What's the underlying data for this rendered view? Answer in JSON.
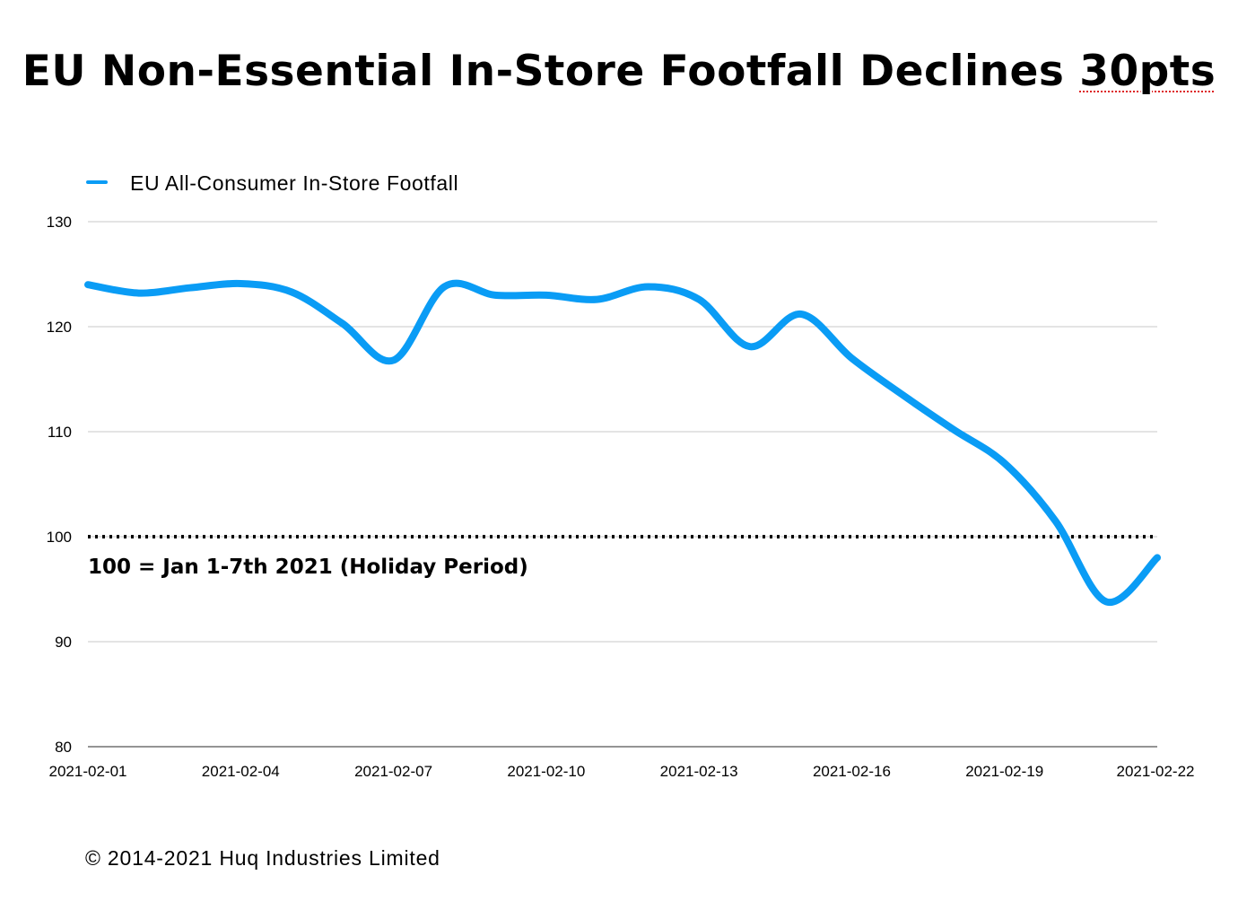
{
  "title_main": "EU Non-Essential In-Store Footfall Declines",
  "title_highlight": "30pts",
  "copyright": "© 2014-2021 Huq Industries Limited",
  "colors": {
    "series": "#0a9cf5",
    "grid": "#c8c8c8",
    "reference": "#000000"
  },
  "chart_data": {
    "type": "line",
    "title": "EU Non-Essential In-Store Footfall Declines 30pts",
    "ylim": [
      80,
      130
    ],
    "yticks": [
      80,
      90,
      100,
      110,
      120,
      130
    ],
    "x": [
      "2021-02-01",
      "2021-02-02",
      "2021-02-03",
      "2021-02-04",
      "2021-02-05",
      "2021-02-06",
      "2021-02-07",
      "2021-02-08",
      "2021-02-09",
      "2021-02-10",
      "2021-02-11",
      "2021-02-12",
      "2021-02-13",
      "2021-02-14",
      "2021-02-15",
      "2021-02-16",
      "2021-02-17",
      "2021-02-18",
      "2021-02-19",
      "2021-02-20",
      "2021-02-21",
      "2021-02-22"
    ],
    "xticks": [
      "2021-02-01",
      "2021-02-04",
      "2021-02-07",
      "2021-02-10",
      "2021-02-13",
      "2021-02-16",
      "2021-02-19",
      "2021-02-22"
    ],
    "grid": true,
    "legend_position": "top-left",
    "series": [
      {
        "name": "EU All-Consumer In-Store Footfall",
        "values": [
          124.0,
          123.2,
          123.7,
          124.1,
          123.3,
          120.3,
          116.8,
          123.8,
          123.0,
          123.0,
          122.6,
          123.8,
          122.6,
          118.1,
          121.2,
          117.0,
          113.5,
          110.2,
          107.0,
          101.5,
          93.8,
          98.0
        ]
      }
    ],
    "reference_line": {
      "value": 100,
      "label": "100 = Jan 1-7th 2021 (Holiday Period)"
    }
  }
}
